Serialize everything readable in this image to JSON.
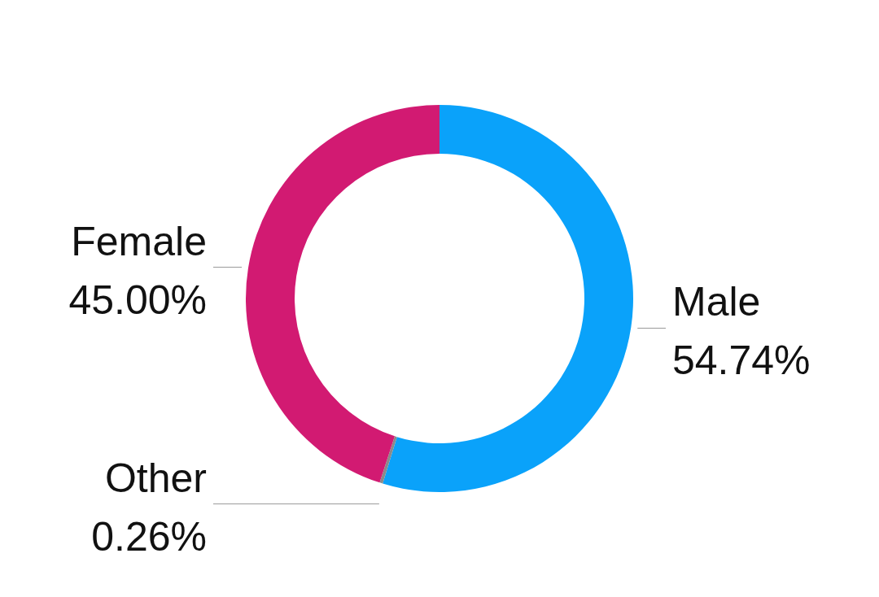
{
  "chart_data": {
    "type": "donut",
    "categories": [
      "Male",
      "Other",
      "Female"
    ],
    "values": [
      54.74,
      0.26,
      45.0
    ],
    "value_labels": [
      "54.74%",
      "0.26%",
      "45.00%"
    ],
    "colors": [
      "#0aa2fa",
      "#8a8a8a",
      "#d21a72"
    ]
  }
}
